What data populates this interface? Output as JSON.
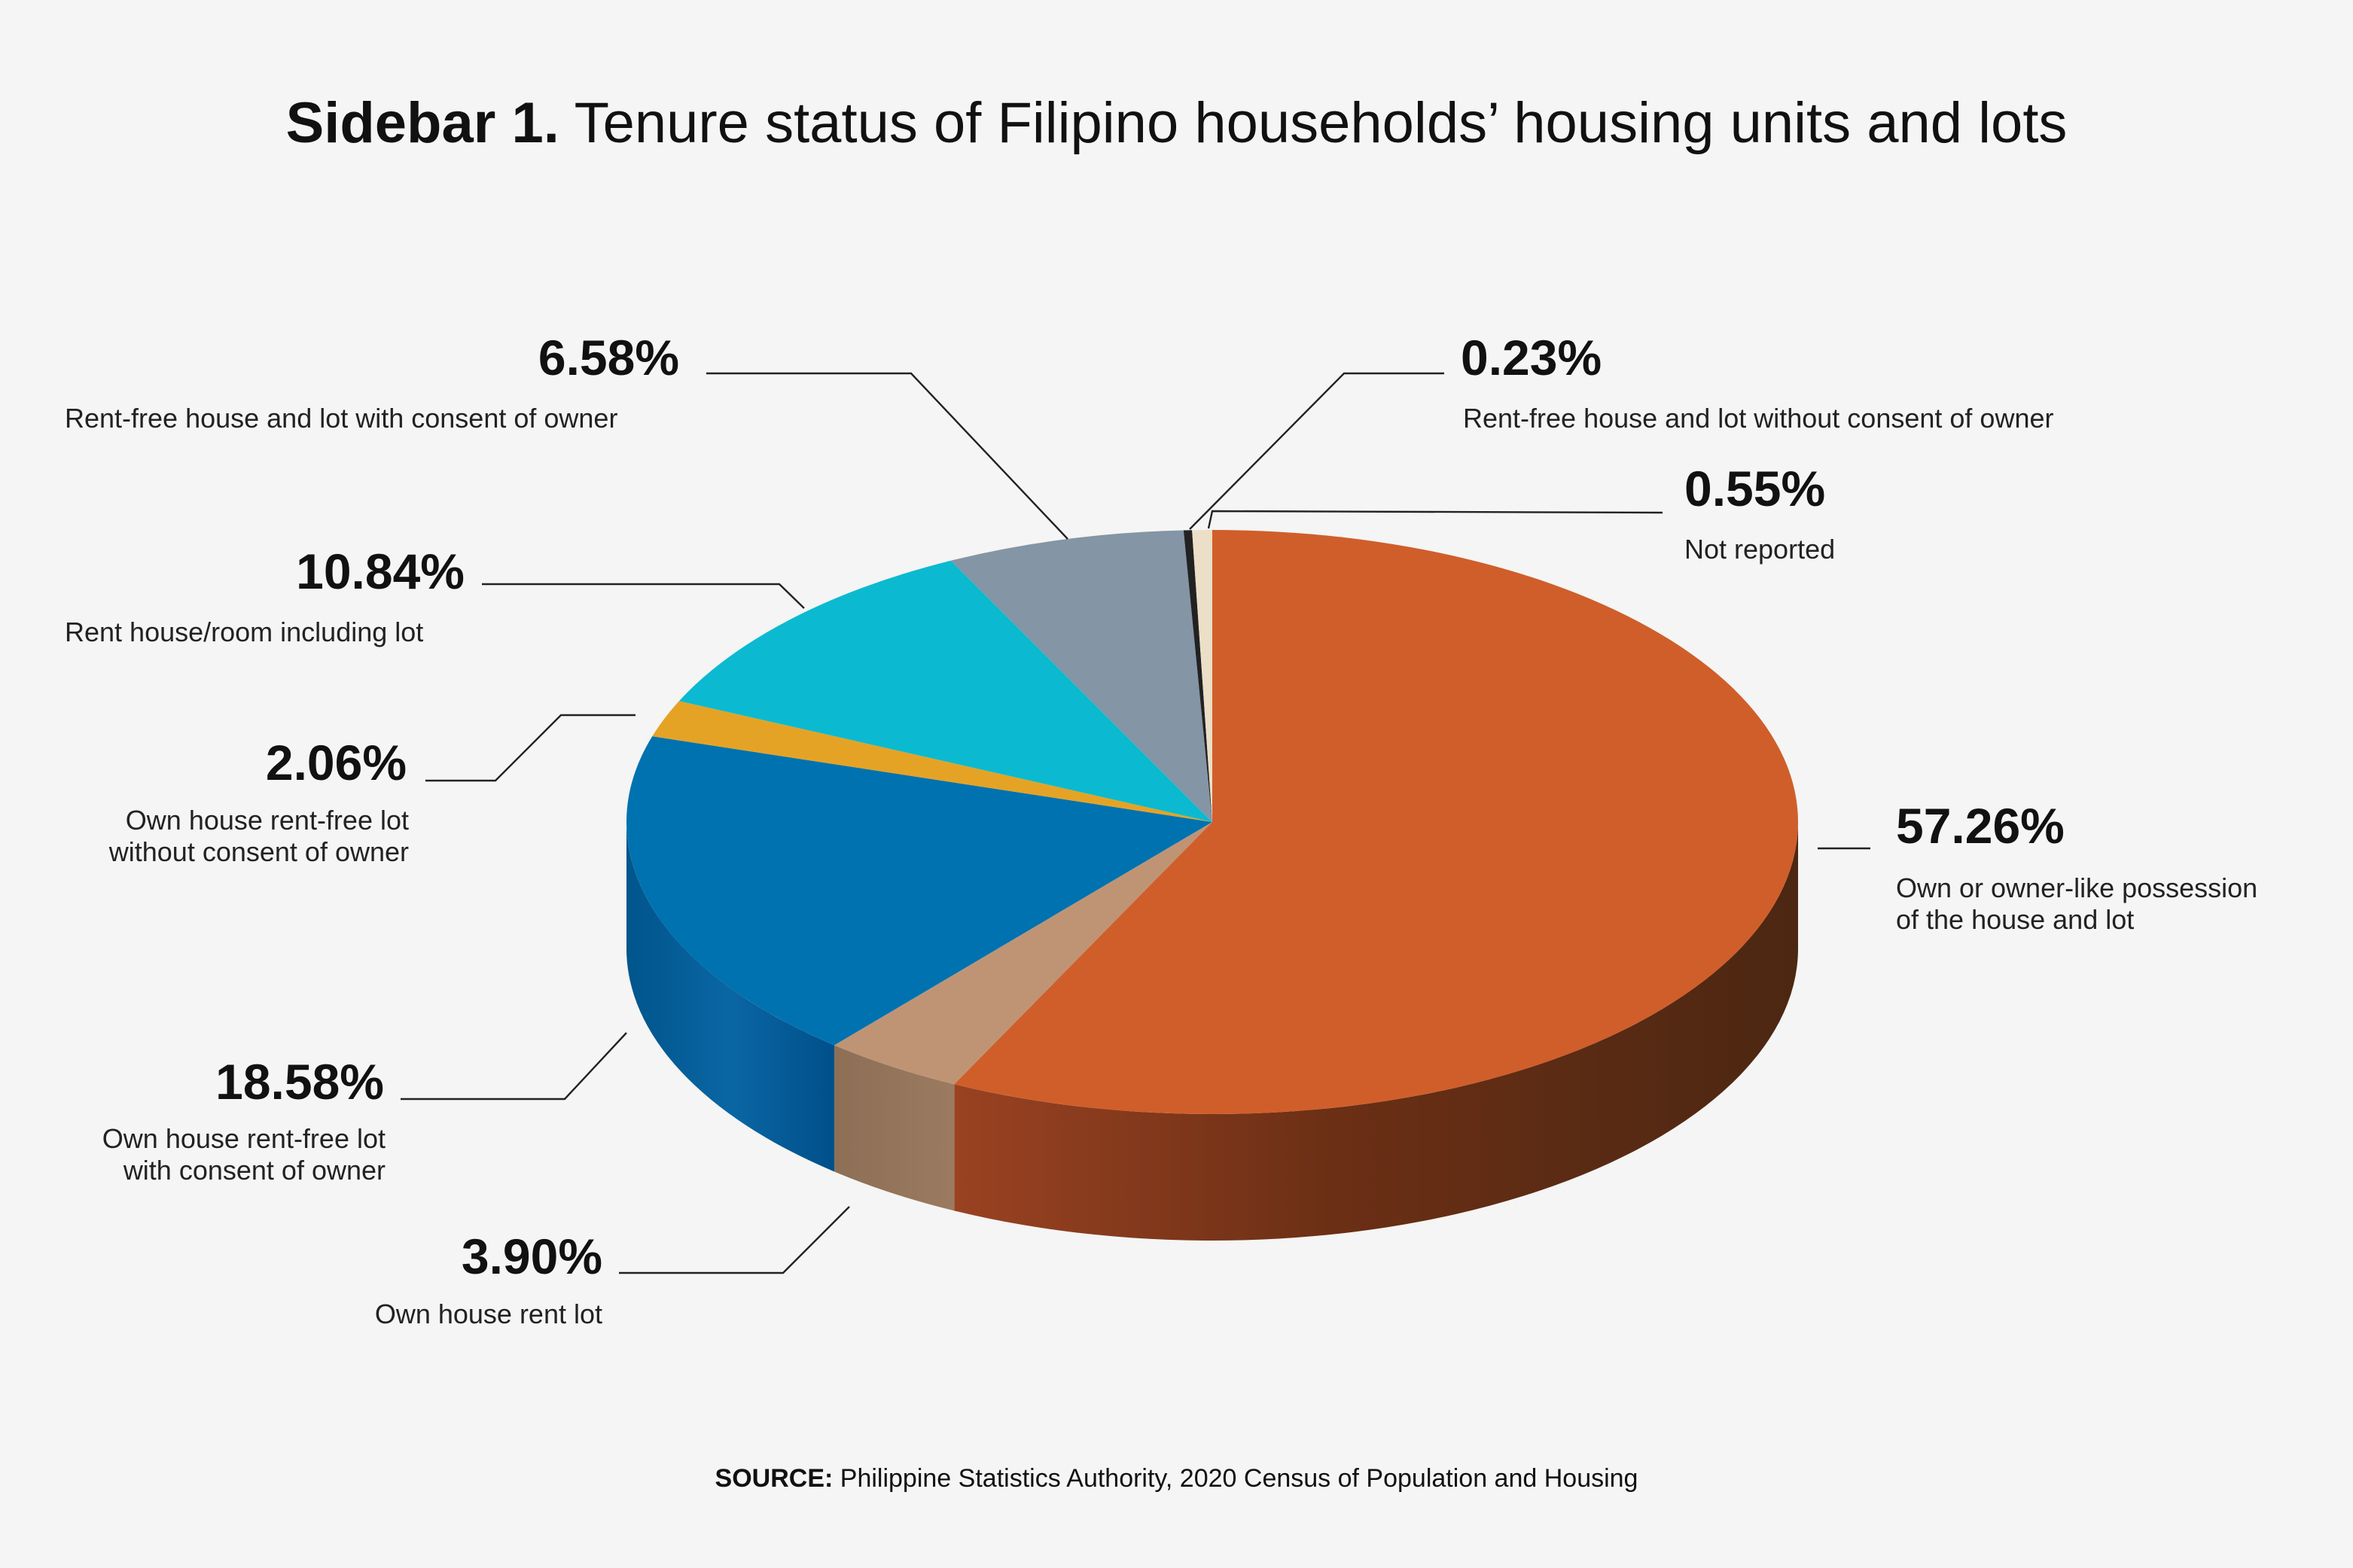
{
  "title": {
    "bold": "Sidebar 1.",
    "text": " Tenure status of Filipino households’ housing units and lots"
  },
  "source": {
    "bold": "SOURCE:",
    "text": " Philippine Statistics Authority, 2020 Census of Population and Housing"
  },
  "chart_data": {
    "type": "pie",
    "title": "Sidebar 1. Tenure status of Filipino households’ housing units and lots",
    "slices": [
      {
        "label": "Own or owner-like possession of the house and lot",
        "value": 57.26,
        "value_label": "57.26%",
        "color": "#d05e2a"
      },
      {
        "label": "Own house rent lot",
        "value": 3.9,
        "value_label": "3.90%",
        "color": "#bf9475"
      },
      {
        "label": "Own house rent-free lot with consent of owner",
        "value": 18.58,
        "value_label": "18.58%",
        "color": "#0072b0"
      },
      {
        "label": "Own house rent-free lot without consent of owner",
        "value": 2.06,
        "value_label": "2.06%",
        "color": "#e4a325"
      },
      {
        "label": "Rent house/room including lot",
        "value": 10.84,
        "value_label": "10.84%",
        "color": "#0bbad0"
      },
      {
        "label": "Rent-free house and lot with consent of owner",
        "value": 6.58,
        "value_label": "6.58%",
        "color": "#8495a5"
      },
      {
        "label": "Rent-free house and lot without consent of owner",
        "value": 0.23,
        "value_label": "0.23%",
        "color": "#222222"
      },
      {
        "label": "Not reported",
        "value": 0.55,
        "value_label": "0.55%",
        "color": "#ecdfc7"
      }
    ]
  }
}
